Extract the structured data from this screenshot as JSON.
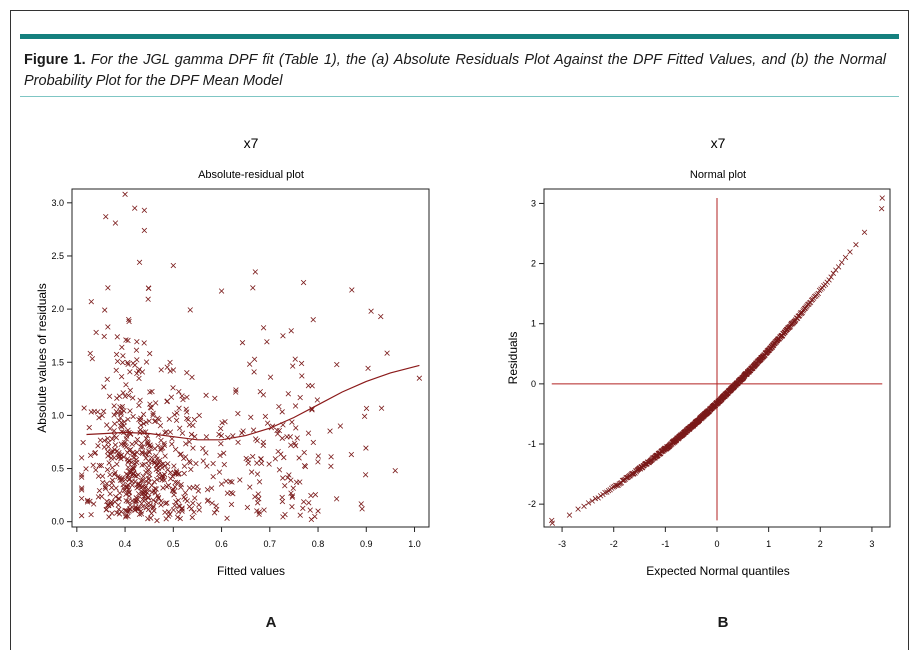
{
  "caption": {
    "lead": "Figure 1.",
    "text": "For the JGL gamma DPF fit (Table 1), the (a) Absolute Residuals Plot Against the DPF Fitted Values, and (b) the Normal Probability Plot for the DPF Mean Model"
  },
  "colors": {
    "accent_rule": "#14807e",
    "separator_rule": "#7fc6c4",
    "points": "#7a1a1a",
    "smooth": "#8b1a1a",
    "reference_lines": "#b22222"
  },
  "panel_labels": [
    "A",
    "B"
  ],
  "chart_data": [
    {
      "type": "scatter",
      "panel": "A",
      "title": "x7",
      "subtitle": "Absolute-residual plot",
      "xlabel": "Fitted values",
      "ylabel": "Absolute values of residuals",
      "xlim": [
        0.29,
        1.03
      ],
      "ylim": [
        -0.05,
        3.13
      ],
      "xticks": [
        "0.3",
        "0.4",
        "0.5",
        "0.6",
        "0.7",
        "0.8",
        "0.9",
        "1.0"
      ],
      "yticks": [
        "0.0",
        "0.5",
        "1.0",
        "1.5",
        "2.0",
        "2.5",
        "3.0"
      ],
      "marker": "x",
      "grid": false,
      "smooth_curve": {
        "x": [
          0.32,
          0.36,
          0.4,
          0.45,
          0.5,
          0.55,
          0.6,
          0.65,
          0.7,
          0.75,
          0.8,
          0.85,
          0.9,
          0.95,
          1.01
        ],
        "y": [
          0.82,
          0.83,
          0.84,
          0.83,
          0.8,
          0.77,
          0.77,
          0.81,
          0.88,
          0.98,
          1.1,
          1.22,
          1.32,
          1.4,
          1.47
        ]
      },
      "outliers": {
        "x": [
          0.4,
          0.42,
          0.36,
          0.38,
          0.44,
          0.44,
          0.43,
          0.5,
          0.6,
          0.67,
          0.77,
          0.87,
          0.91,
          0.93,
          1.01,
          0.96,
          0.8,
          0.79,
          0.33,
          0.34
        ],
        "y": [
          3.08,
          2.95,
          2.87,
          2.81,
          2.93,
          2.74,
          2.44,
          2.41,
          2.17,
          2.35,
          2.25,
          2.18,
          1.98,
          1.93,
          1.35,
          0.48,
          0.1,
          1.9,
          2.07,
          1.78
        ]
      }
    },
    {
      "type": "scatter",
      "panel": "B",
      "title": "x7",
      "subtitle": "Normal plot",
      "xlabel": "Expected Normal quantiles",
      "ylabel": "Residuals",
      "xlim": [
        -3.35,
        3.35
      ],
      "ylim": [
        -2.38,
        3.24
      ],
      "xticks": [
        "-3",
        "-2",
        "-1",
        "0",
        "1",
        "2",
        "3"
      ],
      "yticks": [
        "-2",
        "-1",
        "0",
        "1",
        "2",
        "3"
      ],
      "marker": "x",
      "grid": false,
      "reference_lines": {
        "vertical_at_x": 0,
        "horizontal_at_y": 0
      },
      "quantile_range": [
        -3.2,
        3.2
      ],
      "residual_range": [
        -2.27,
        3.09
      ]
    }
  ]
}
